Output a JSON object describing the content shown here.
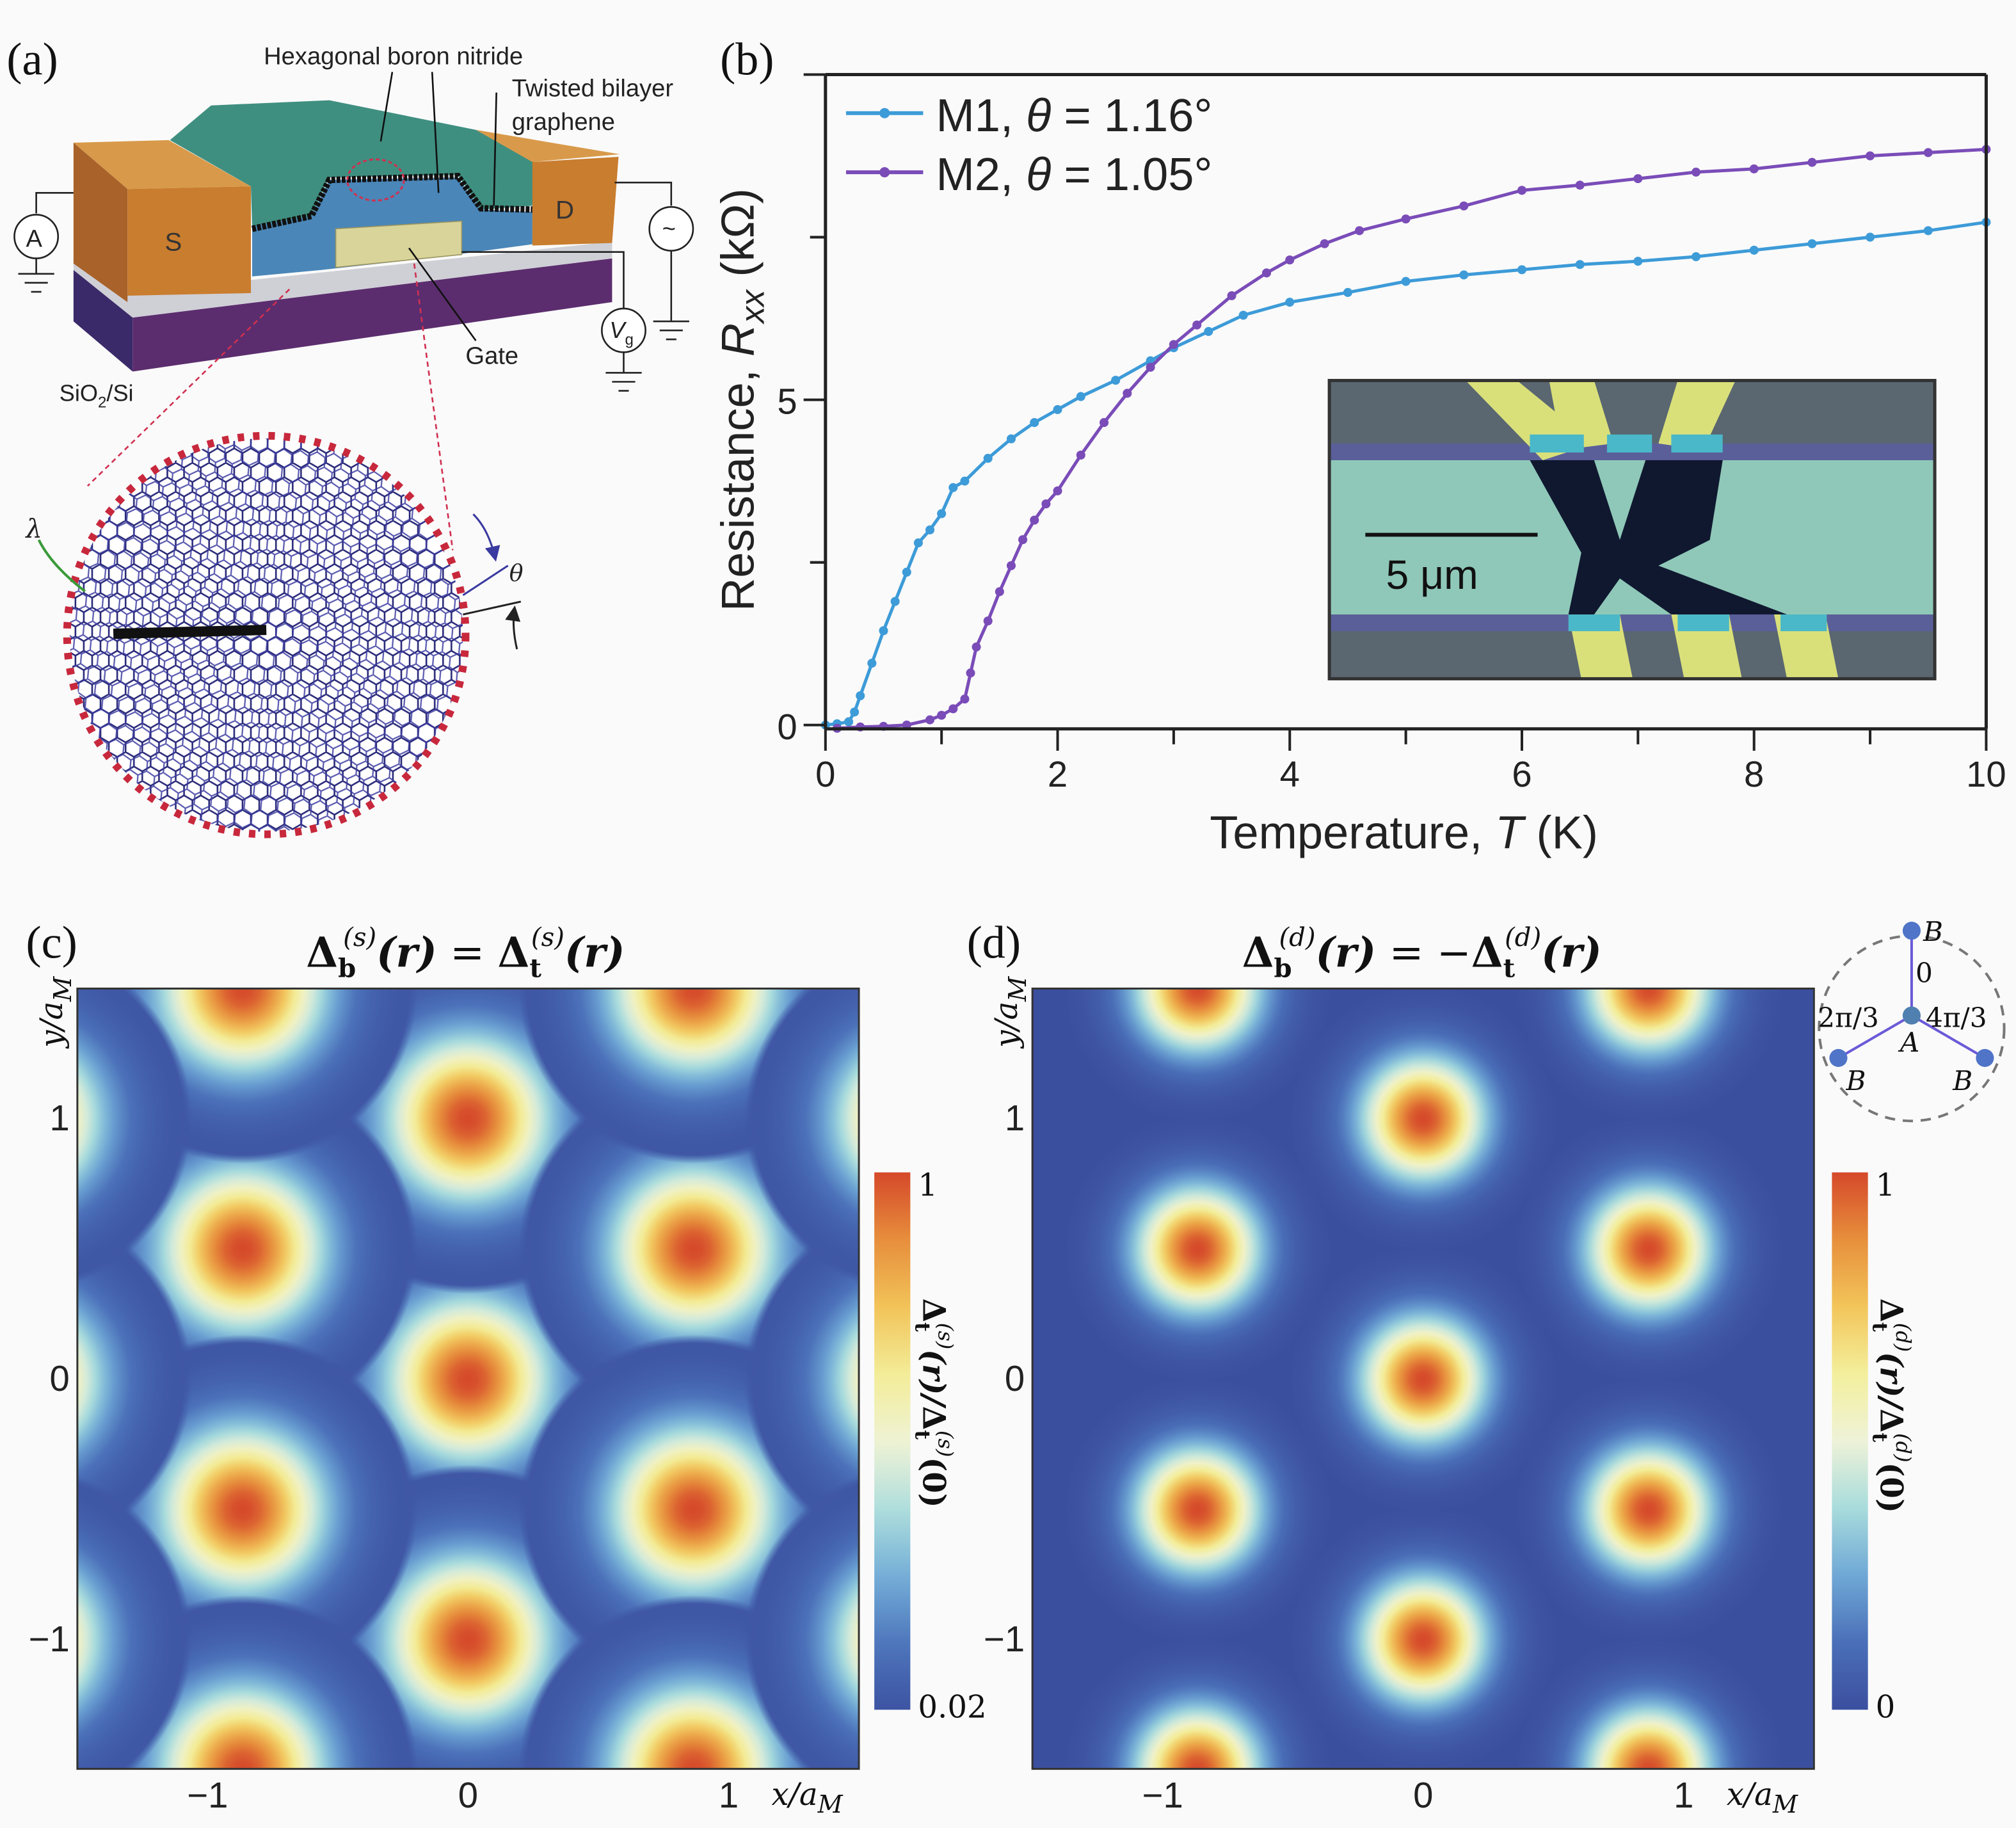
{
  "panel_labels": {
    "a": "(a)",
    "b": "(b)",
    "c": "(c)",
    "d": "(d)"
  },
  "device_schematic": {
    "labels": {
      "hbn": "Hexagonal boron nitride",
      "tbg_line1": "Twisted bilayer",
      "tbg_line2": "graphene",
      "gate": "Gate",
      "substrate_main": "SiO",
      "substrate_sub": "2",
      "substrate_rest": "/Si",
      "source": "S",
      "drain": "D",
      "ammeter": "A",
      "ac_source": "~",
      "vg_main": "V",
      "vg_sub": "g",
      "moire_wavelength": "λ",
      "twist_angle": "θ"
    },
    "colors": {
      "contacts": "#c97d2e",
      "hbn_top": "#3f8f80",
      "hbn_bottom": "#4a86b8",
      "gate": "#d8d49a",
      "substrate": "#5b2d6e",
      "oxide": "#cfcfd6",
      "lattice": "#2a2a7a",
      "zoom_lines": "#d03050"
    }
  },
  "chart_data": [
    {
      "panel": "b",
      "type": "line",
      "xlabel": "Temperature, T (K)",
      "xlabel_parts": {
        "pre": "Temperature, ",
        "var": "T",
        "post": " (K)"
      },
      "ylabel_parts": {
        "pre": "Resistance, ",
        "var": "R",
        "sub": "xx",
        "post": " (kΩ)"
      },
      "xlim": [
        0,
        10
      ],
      "ylim": [
        -0.1,
        10
      ],
      "xticks": [
        0,
        2,
        4,
        6,
        8,
        10
      ],
      "xtick_labels": [
        "0",
        "2",
        "4",
        "6",
        "8",
        "10"
      ],
      "yticks": [
        0,
        5
      ],
      "ytick_labels": [
        "0",
        "5"
      ],
      "grid": false,
      "legend_placement": "top-left",
      "series": [
        {
          "name": "M1, θ = 1.16°",
          "name_parts": {
            "pre": "M1, ",
            "var": "θ",
            "post": " = 1.16°"
          },
          "color": "#3d9bd8",
          "points": [
            [
              0,
              0
            ],
            [
              0.1,
              0.02
            ],
            [
              0.2,
              0.05
            ],
            [
              0.25,
              0.2
            ],
            [
              0.3,
              0.45
            ],
            [
              0.4,
              0.95
            ],
            [
              0.5,
              1.45
            ],
            [
              0.6,
              1.9
            ],
            [
              0.7,
              2.35
            ],
            [
              0.8,
              2.8
            ],
            [
              0.9,
              3.0
            ],
            [
              1.0,
              3.25
            ],
            [
              1.1,
              3.65
            ],
            [
              1.2,
              3.75
            ],
            [
              1.4,
              4.1
            ],
            [
              1.6,
              4.4
            ],
            [
              1.8,
              4.65
            ],
            [
              2.0,
              4.85
            ],
            [
              2.2,
              5.05
            ],
            [
              2.5,
              5.3
            ],
            [
              2.8,
              5.6
            ],
            [
              3.0,
              5.8
            ],
            [
              3.3,
              6.05
            ],
            [
              3.6,
              6.3
            ],
            [
              4.0,
              6.5
            ],
            [
              4.5,
              6.65
            ],
            [
              5.0,
              6.82
            ],
            [
              5.5,
              6.92
            ],
            [
              6.0,
              7.0
            ],
            [
              6.5,
              7.08
            ],
            [
              7.0,
              7.13
            ],
            [
              7.5,
              7.2
            ],
            [
              8.0,
              7.3
            ],
            [
              8.5,
              7.4
            ],
            [
              9.0,
              7.5
            ],
            [
              9.5,
              7.6
            ],
            [
              10,
              7.73
            ]
          ]
        },
        {
          "name": "M2, θ = 1.05°",
          "name_parts": {
            "pre": "M2, ",
            "var": "θ",
            "post": " = 1.05°"
          },
          "color": "#7a4cb8",
          "points": [
            [
              0.1,
              -0.05
            ],
            [
              0.3,
              -0.03
            ],
            [
              0.5,
              -0.02
            ],
            [
              0.7,
              0.0
            ],
            [
              0.9,
              0.08
            ],
            [
              1.0,
              0.15
            ],
            [
              1.1,
              0.25
            ],
            [
              1.2,
              0.4
            ],
            [
              1.25,
              0.8
            ],
            [
              1.3,
              1.2
            ],
            [
              1.4,
              1.6
            ],
            [
              1.5,
              2.05
            ],
            [
              1.6,
              2.45
            ],
            [
              1.7,
              2.85
            ],
            [
              1.8,
              3.15
            ],
            [
              1.9,
              3.4
            ],
            [
              2.0,
              3.6
            ],
            [
              2.2,
              4.15
            ],
            [
              2.4,
              4.65
            ],
            [
              2.6,
              5.1
            ],
            [
              2.8,
              5.5
            ],
            [
              3.0,
              5.85
            ],
            [
              3.2,
              6.15
            ],
            [
              3.5,
              6.6
            ],
            [
              3.8,
              6.95
            ],
            [
              4.0,
              7.15
            ],
            [
              4.3,
              7.4
            ],
            [
              4.6,
              7.6
            ],
            [
              5.0,
              7.78
            ],
            [
              5.5,
              7.98
            ],
            [
              6.0,
              8.22
            ],
            [
              6.5,
              8.3
            ],
            [
              7.0,
              8.4
            ],
            [
              7.5,
              8.5
            ],
            [
              8.0,
              8.55
            ],
            [
              8.5,
              8.65
            ],
            [
              9.0,
              8.75
            ],
            [
              9.5,
              8.8
            ],
            [
              10,
              8.85
            ]
          ]
        }
      ],
      "inset": {
        "scale_bar_label": "5 μm"
      }
    },
    {
      "panel": "c",
      "type": "heatmap",
      "title_parts": {
        "d1": "Δ",
        "sub1": "b",
        "sup1": "(s)",
        "arg1": "(r)",
        "eq": " = ",
        "d2": "Δ",
        "sub2": "t",
        "sup2": "(s)",
        "arg2": "(r)"
      },
      "xlabel_parts": {
        "var": "x/a",
        "sub": "M"
      },
      "ylabel_parts": {
        "var": "y/a",
        "sub": "M"
      },
      "xlim": [
        -1.5,
        1.5
      ],
      "ylim": [
        -1.5,
        1.5
      ],
      "xticks": [
        -1,
        0,
        1
      ],
      "xtick_labels": [
        "−1",
        "0",
        "1"
      ],
      "yticks": [
        -1,
        0,
        1
      ],
      "ytick_labels": [
        "−1",
        "0",
        "1"
      ],
      "colorbar": {
        "min": 0.02,
        "max": 1,
        "min_label": "0.02",
        "max_label": "1",
        "label_parts": {
          "d1": "Δ",
          "sub1": "t",
          "sup1": "(s)",
          "arg1": "(r)/",
          "d2": "Δ",
          "sub2": "t",
          "sup2": "(s)",
          "arg2": "(0)"
        }
      },
      "peaks": [
        [
          0,
          0
        ],
        [
          0,
          1
        ],
        [
          0,
          -1
        ],
        [
          -0.866,
          0.5
        ],
        [
          -0.866,
          -0.5
        ],
        [
          0.866,
          0.5
        ],
        [
          0.866,
          -0.5
        ],
        [
          -0.866,
          1.5
        ],
        [
          0.866,
          1.5
        ],
        [
          -0.866,
          -1.5
        ],
        [
          0.866,
          -1.5
        ],
        [
          -1.732,
          0
        ],
        [
          1.732,
          0
        ],
        [
          -1.732,
          1
        ],
        [
          1.732,
          1
        ],
        [
          -1.732,
          -1
        ],
        [
          1.732,
          -1
        ]
      ],
      "peak_value": 1
    },
    {
      "panel": "d",
      "type": "heatmap",
      "title_parts": {
        "d1": "Δ",
        "sub1": "b",
        "sup1": "(d)",
        "arg1": "(r)",
        "eq": " = −",
        "d2": "Δ",
        "sub2": "t",
        "sup2": "(d)",
        "arg2": "(r)"
      },
      "xlabel_parts": {
        "var": "x/a",
        "sub": "M"
      },
      "ylabel_parts": {
        "var": "y/a",
        "sub": "M"
      },
      "xlim": [
        -1.5,
        1.5
      ],
      "ylim": [
        -1.5,
        1.5
      ],
      "xticks": [
        -1,
        0,
        1
      ],
      "xtick_labels": [
        "−1",
        "0",
        "1"
      ],
      "yticks": [
        -1,
        0,
        1
      ],
      "ytick_labels": [
        "−1",
        "0",
        "1"
      ],
      "colorbar": {
        "min": 0,
        "max": 1,
        "min_label": "0",
        "max_label": "1",
        "label_parts": {
          "d1": "Δ",
          "sub1": "t",
          "sup1": "(d)",
          "arg1": "(r)/",
          "d2": "Δ",
          "sub2": "t",
          "sup2": "(d)",
          "arg2": "(0)"
        }
      },
      "peaks": [
        [
          0,
          0
        ],
        [
          0,
          1
        ],
        [
          0,
          -1
        ],
        [
          -0.866,
          0.5
        ],
        [
          -0.866,
          -0.5
        ],
        [
          0.866,
          0.5
        ],
        [
          0.866,
          -0.5
        ],
        [
          -0.866,
          1.5
        ],
        [
          0.866,
          1.5
        ],
        [
          -0.866,
          -1.5
        ],
        [
          0.866,
          -1.5
        ]
      ],
      "peak_value": 1,
      "phase_diagram": {
        "center": "A",
        "neighbor": "B",
        "phases": [
          "0",
          "2π/3",
          "4π/3"
        ]
      }
    }
  ],
  "colormap": [
    "#3b4f9f",
    "#4a6fb8",
    "#6fa8d6",
    "#a8dcdc",
    "#eef2d8",
    "#f3ef9c",
    "#f2c55a",
    "#e78f3c",
    "#d5492a"
  ]
}
